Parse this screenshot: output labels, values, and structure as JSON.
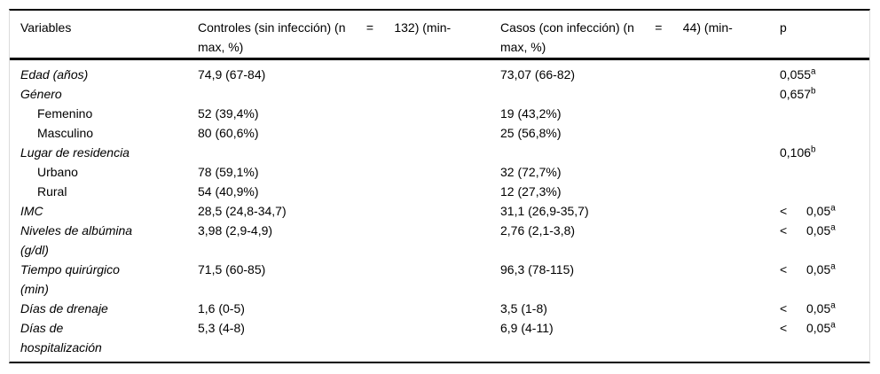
{
  "colors": {
    "background": "#ffffff",
    "text": "#000000",
    "rule": "#000000"
  },
  "table": {
    "header": {
      "variables": "Variables",
      "controls": "Controles (sin infección) (n      =      132) (min-\nmax, %)",
      "cases": "Casos (con infección) (n      =      44) (min-\nmax, %)",
      "p": "p"
    },
    "rows": [
      {
        "label": "Edad (años)",
        "italic": true,
        "indent": false,
        "controls": "74,9 (67-84)",
        "cases": "73,07 (66-82)",
        "p_prefix": "",
        "p_value": "0,055",
        "p_sup": "a"
      },
      {
        "label": "Género",
        "italic": true,
        "indent": false,
        "controls": "",
        "cases": "",
        "p_prefix": "",
        "p_value": "0,657",
        "p_sup": "b"
      },
      {
        "label": "Femenino",
        "italic": false,
        "indent": true,
        "controls": "52 (39,4%)",
        "cases": "19 (43,2%)",
        "p_prefix": "",
        "p_value": "",
        "p_sup": ""
      },
      {
        "label": "Masculino",
        "italic": false,
        "indent": true,
        "controls": "80 (60,6%)",
        "cases": "25 (56,8%)",
        "p_prefix": "",
        "p_value": "",
        "p_sup": ""
      },
      {
        "label": "Lugar de residencia",
        "italic": true,
        "indent": false,
        "controls": "",
        "cases": "",
        "p_prefix": "",
        "p_value": "0,106",
        "p_sup": "b"
      },
      {
        "label": "Urbano",
        "italic": false,
        "indent": true,
        "controls": "78 (59,1%)",
        "cases": "32 (72,7%)",
        "p_prefix": "",
        "p_value": "",
        "p_sup": ""
      },
      {
        "label": "Rural",
        "italic": false,
        "indent": true,
        "controls": "54 (40,9%)",
        "cases": "12 (27,3%)",
        "p_prefix": "",
        "p_value": "",
        "p_sup": ""
      },
      {
        "label": "IMC",
        "italic": true,
        "indent": false,
        "controls": "28,5 (24,8-34,7)",
        "cases": "31,1 (26,9-35,7)",
        "p_prefix": "<",
        "p_value": "0,05",
        "p_sup": "a"
      },
      {
        "label": "Niveles de albúmina\n(g/dl)",
        "italic": true,
        "indent": false,
        "controls": "3,98 (2,9-4,9)",
        "cases": "2,76 (2,1-3,8)",
        "p_prefix": "<",
        "p_value": "0,05",
        "p_sup": "a"
      },
      {
        "label": "Tiempo quirúrgico\n(min)",
        "italic": true,
        "indent": false,
        "controls": "71,5 (60-85)",
        "cases": "96,3 (78-115)",
        "p_prefix": "<",
        "p_value": "0,05",
        "p_sup": "a"
      },
      {
        "label": "Días de drenaje",
        "italic": true,
        "indent": false,
        "controls": "1,6 (0-5)",
        "cases": "3,5 (1-8)",
        "p_prefix": "<",
        "p_value": "0,05",
        "p_sup": "a"
      },
      {
        "label": "Días de\nhospitalización",
        "italic": true,
        "indent": false,
        "controls": "5,3 (4-8)",
        "cases": "6,9 (4-11)",
        "p_prefix": "<",
        "p_value": "0,05",
        "p_sup": "a"
      }
    ]
  }
}
